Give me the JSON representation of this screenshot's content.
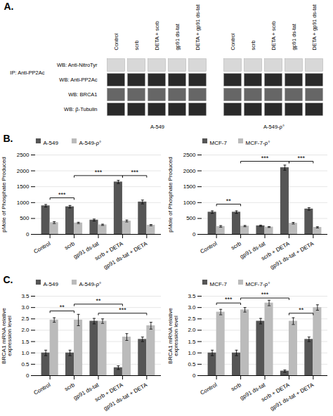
{
  "chart_data": [
    {
      "type": "blot",
      "title": "A.",
      "categories": [
        "Control",
        "scrb",
        "DETA + scrb",
        "gp91 ds-tat",
        "DETA + gp91 ds-tat"
      ],
      "rows": [
        "WB: Anti-NitroTyr",
        "WB: Anti-PP2Ac",
        "WB: BRCA1",
        "WB: β-Tubulin"
      ],
      "groups": [
        "A-549",
        "A-549-ρ°"
      ],
      "annotations": [
        "IP: Anti-PP2Ac"
      ]
    },
    {
      "type": "bar",
      "title": "B.",
      "categories": [
        "Control",
        "scrb",
        "gp91 ds-tat",
        "scrb + DETA",
        "gp91 ds-tat + DETA"
      ],
      "ylabel": "pMole of Phosphate Produced",
      "series": [
        {
          "name": "A-549",
          "color": "#555555",
          "values": [
            900,
            870,
            450,
            1650,
            1020
          ],
          "errors": [
            40,
            40,
            30,
            50,
            60
          ]
        },
        {
          "name": "A-549-ρ°",
          "color": "#bbbbbb",
          "values": [
            370,
            360,
            300,
            420,
            290
          ],
          "errors": [
            30,
            20,
            20,
            30,
            20
          ]
        }
      ],
      "ylim": [
        0,
        2500
      ],
      "yticks": [
        0,
        500,
        1000,
        1500,
        2000,
        2500
      ],
      "grid": true,
      "legend": "upper left",
      "sig_brackets": [
        {
          "from": "Control",
          "to": "scrb",
          "y": 1150,
          "label": "***"
        },
        {
          "from": "scrb",
          "to": "scrb + DETA",
          "y": 1850,
          "label": "***"
        },
        {
          "from": "scrb + DETA",
          "to": "gp91 ds-tat + DETA",
          "y": 1850,
          "label": "***"
        }
      ]
    },
    {
      "type": "bar",
      "categories": [
        "Control",
        "scrb",
        "gp91 ds-tat",
        "scrb + DETA",
        "gp91 ds-tat + DETA"
      ],
      "ylabel": "pMole of Phosphate Produced",
      "series": [
        {
          "name": "MCF-7",
          "color": "#555555",
          "values": [
            700,
            700,
            270,
            2100,
            800
          ],
          "errors": [
            40,
            40,
            20,
            80,
            40
          ]
        },
        {
          "name": "MCF-7-ρ°",
          "color": "#bbbbbb",
          "values": [
            250,
            260,
            230,
            350,
            220
          ],
          "errors": [
            25,
            20,
            15,
            25,
            20
          ]
        }
      ],
      "ylim": [
        0,
        2500
      ],
      "yticks": [
        0,
        500,
        1000,
        1500,
        2000,
        2500
      ],
      "grid": true,
      "legend": "upper left",
      "sig_brackets": [
        {
          "from": "Control",
          "to": "scrb",
          "y": 950,
          "label": "**"
        },
        {
          "from": "scrb",
          "to": "scrb + DETA",
          "y": 2300,
          "label": "***"
        },
        {
          "from": "scrb + DETA",
          "to": "gp91 ds-tat + DETA",
          "y": 2300,
          "label": "***"
        }
      ]
    },
    {
      "type": "bar",
      "title": "C.",
      "categories": [
        "Control",
        "scrb",
        "gp91 ds-tat",
        "scrb + DETA",
        "gp91 ds-tat + DETA"
      ],
      "ylabel": "BRCA1 mRNA relative\nexpression level",
      "series": [
        {
          "name": "A-549",
          "color": "#555555",
          "values": [
            1.0,
            1.0,
            2.4,
            0.35,
            1.6
          ],
          "errors": [
            0.12,
            0.12,
            0.12,
            0.08,
            0.1
          ]
        },
        {
          "name": "A-549-ρ°",
          "color": "#bbbbbb",
          "values": [
            2.45,
            2.45,
            2.4,
            1.7,
            2.2
          ],
          "errors": [
            0.1,
            0.25,
            0.1,
            0.15,
            0.15
          ]
        }
      ],
      "ylim": [
        0,
        3.5
      ],
      "yticks": [
        0,
        0.5,
        {
          "value": 1,
          "label": "1.0"
        },
        1.5,
        {
          "value": 2,
          "label": "2.0"
        },
        2.5,
        {
          "value": 3,
          "label": "3.0"
        },
        3.5
      ],
      "grid": true,
      "legend": "upper left",
      "sig_brackets": [
        {
          "from": "Control",
          "to": "scrb",
          "y": 2.85,
          "label": "**"
        },
        {
          "from": "scrb",
          "to": "scrb + DETA",
          "y": 3.15,
          "label": "**"
        },
        {
          "from": "gp91 ds-tat",
          "to": "gp91 ds-tat + DETA",
          "y": 2.75,
          "label": "***"
        }
      ]
    },
    {
      "type": "bar",
      "categories": [
        "Control",
        "scrb",
        "gp91 ds-tat",
        "scrb + DETA",
        "gp91 ds-tat + DETA"
      ],
      "ylabel": "BRCA1 mRNA relative\nexpression level",
      "series": [
        {
          "name": "MCF-7",
          "color": "#555555",
          "values": [
            1.0,
            1.0,
            2.4,
            0.2,
            1.6
          ],
          "errors": [
            0.12,
            0.12,
            0.12,
            0.05,
            0.1
          ]
        },
        {
          "name": "MCF-7-ρ°",
          "color": "#bbbbbb",
          "values": [
            2.8,
            2.9,
            3.2,
            2.4,
            3.0
          ],
          "errors": [
            0.12,
            0.1,
            0.12,
            0.15,
            0.12
          ]
        }
      ],
      "ylim": [
        0,
        3.5
      ],
      "yticks": [
        0,
        0.5,
        {
          "value": 1,
          "label": "1.0"
        },
        1.5,
        {
          "value": 2,
          "label": "2.0"
        },
        2.5,
        {
          "value": 3,
          "label": "3.0"
        },
        3.5
      ],
      "grid": true,
      "legend": "upper left",
      "sig_brackets": [
        {
          "from": "Control",
          "to": "scrb",
          "y": 3.2,
          "label": "***"
        },
        {
          "from": "scrb",
          "to": "scrb + DETA",
          "y": 3.42,
          "label": "***"
        },
        {
          "from": "scrb + DETA",
          "to": "gp91 ds-tat + DETA",
          "y": 2.75,
          "label": "**"
        }
      ]
    }
  ]
}
